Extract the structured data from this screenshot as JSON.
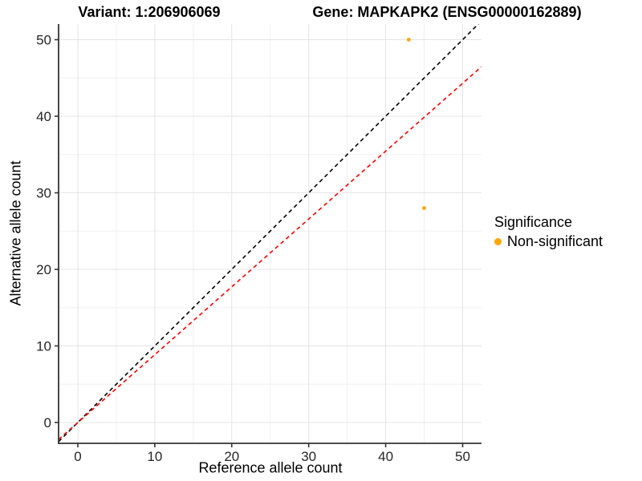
{
  "titles": {
    "variant": "Variant: 1:206906069",
    "gene": "Gene: MAPKAPK2 (ENSG00000162889)"
  },
  "chart_data": {
    "type": "scatter",
    "xlabel": "Reference allele count",
    "ylabel": "Alternative allele count",
    "x_ticks": [
      0,
      10,
      20,
      30,
      40,
      50
    ],
    "y_ticks": [
      0,
      10,
      20,
      30,
      40,
      50
    ],
    "minor_ticks": [
      5,
      15,
      25,
      35,
      45
    ],
    "xlim": [
      -2.5,
      52.45
    ],
    "ylim": [
      -2.72,
      52.04
    ],
    "grid": true,
    "points": [
      {
        "x": 43,
        "y": 50,
        "series": "Non-significant"
      },
      {
        "x": 45,
        "y": 28,
        "series": "Non-significant"
      }
    ],
    "lines": [
      {
        "name": "identity-line",
        "slope": 1,
        "intercept": 0,
        "color": "#000000",
        "style": "dashed"
      },
      {
        "name": "ratio-line",
        "slope": 0.886,
        "intercept": 0,
        "color": "#FF0000",
        "style": "dashed"
      }
    ],
    "legend": {
      "title": "Significance",
      "position": "right",
      "items": [
        {
          "label": "Non-significant",
          "color": "#FFA500"
        }
      ]
    }
  },
  "colors": {
    "point": "#FFA500",
    "grid_major": "#E4E4E4",
    "grid_minor": "#F0F0F0",
    "axis": "#333333",
    "tick_text": "#262626",
    "background": "#FFFFFF"
  }
}
